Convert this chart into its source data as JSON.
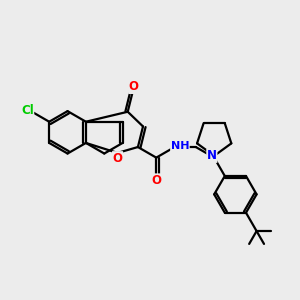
{
  "bg_color": "#ececec",
  "bond_color": "#000000",
  "bond_width": 1.6,
  "atom_colors": {
    "O": "#ff0000",
    "N": "#0000ff",
    "Cl": "#00cc00",
    "C": "#000000"
  },
  "font_size": 8.5,
  "figsize": [
    3.0,
    3.0
  ],
  "dpi": 100
}
